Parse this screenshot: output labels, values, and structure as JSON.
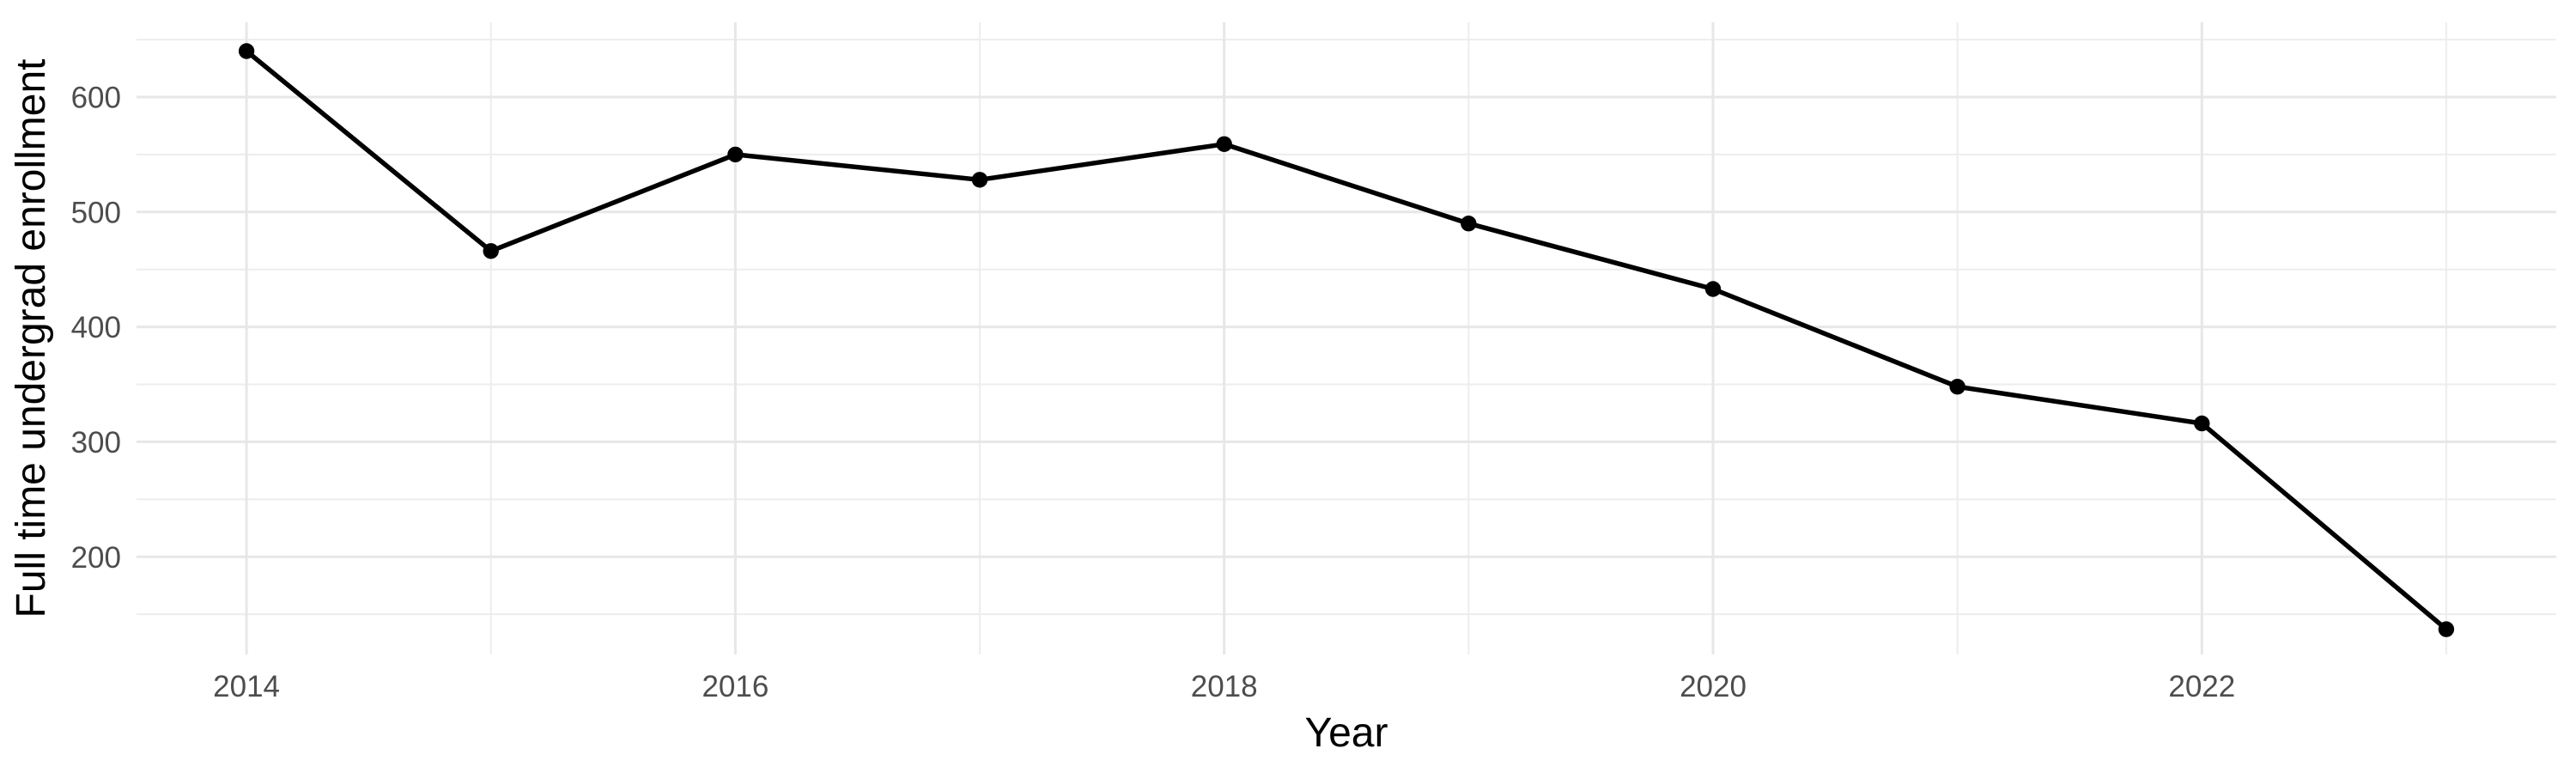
{
  "chart_data": {
    "type": "line",
    "title": "",
    "xlabel": "Year",
    "ylabel": "Full time undergrad enrollment",
    "x": [
      2014,
      2015,
      2016,
      2017,
      2018,
      2019,
      2020,
      2021,
      2022,
      2023
    ],
    "values": [
      640,
      466,
      550,
      528,
      559,
      490,
      433,
      348,
      316,
      137
    ],
    "x_major_ticks": [
      2014,
      2016,
      2018,
      2020,
      2022
    ],
    "x_tick_labels": [
      "2014",
      "2016",
      "2018",
      "2020",
      "2022"
    ],
    "x_minor_ticks": [
      2015,
      2017,
      2019,
      2021,
      2023
    ],
    "y_major_ticks": [
      200,
      300,
      400,
      500,
      600
    ],
    "y_tick_labels": [
      "200",
      "300",
      "400",
      "500",
      "600"
    ],
    "y_minor_ticks": [
      150,
      250,
      350,
      450,
      550,
      650
    ],
    "xlim": [
      2013.55,
      2023.45
    ],
    "ylim": [
      115,
      665
    ],
    "grid": true,
    "legend": "none",
    "colors": {
      "line": "#000000",
      "point": "#000000",
      "grid_major": "#E7E7E7",
      "grid_minor": "#EDEDED",
      "tick_label": "#4D4D4D",
      "axis_title": "#000000",
      "background": "#FFFFFF"
    }
  }
}
